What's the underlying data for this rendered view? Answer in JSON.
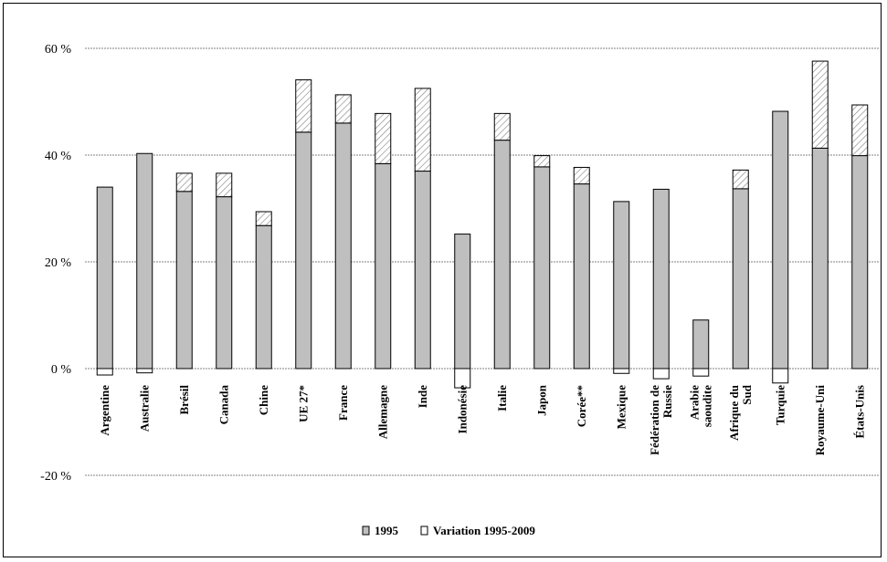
{
  "chart_data": {
    "type": "bar",
    "stacked": true,
    "categories": [
      "Argentine",
      "Australie",
      "Brésil",
      "Canada",
      "Chine",
      "UE 27*",
      "France",
      "Allemagne",
      "Inde",
      "Indonésie",
      "Italie",
      "Japon",
      "Corée**",
      "Mexique",
      "Fédération de Russie",
      "Arabie saoudite",
      "Afrique du Sud",
      "Turquie",
      "Royaume-Uni",
      "États-Unis"
    ],
    "series": [
      {
        "name": "1995",
        "values": [
          34,
          40.3,
          33.2,
          32.2,
          26.8,
          44.3,
          46,
          38.4,
          37,
          25.2,
          42.8,
          37.8,
          34.6,
          31.3,
          33.6,
          9.1,
          33.7,
          48.2,
          41.3,
          39.9
        ]
      },
      {
        "name": "Variation 1995-2009",
        "values": [
          -1.2,
          -0.8,
          3.4,
          4.4,
          2.6,
          9.8,
          5.3,
          9.4,
          15.5,
          -3.6,
          5,
          2.1,
          3.1,
          -0.9,
          -1.9,
          -1.4,
          3.5,
          -2.7,
          16.3,
          9.5
        ]
      }
    ],
    "ylim": [
      -20,
      60
    ],
    "yticks": [
      -20,
      0,
      20,
      40,
      60
    ],
    "ytick_labels": [
      "-20 %",
      "0 %",
      "20 %",
      "40 %",
      "60 %"
    ],
    "grid": true,
    "legend_position": "bottom",
    "colors": {
      "base": "#bfbfbf",
      "variation_fill": "#ffffff",
      "hatch": "#808080",
      "grid": "#808080",
      "outline": "#000000"
    }
  }
}
